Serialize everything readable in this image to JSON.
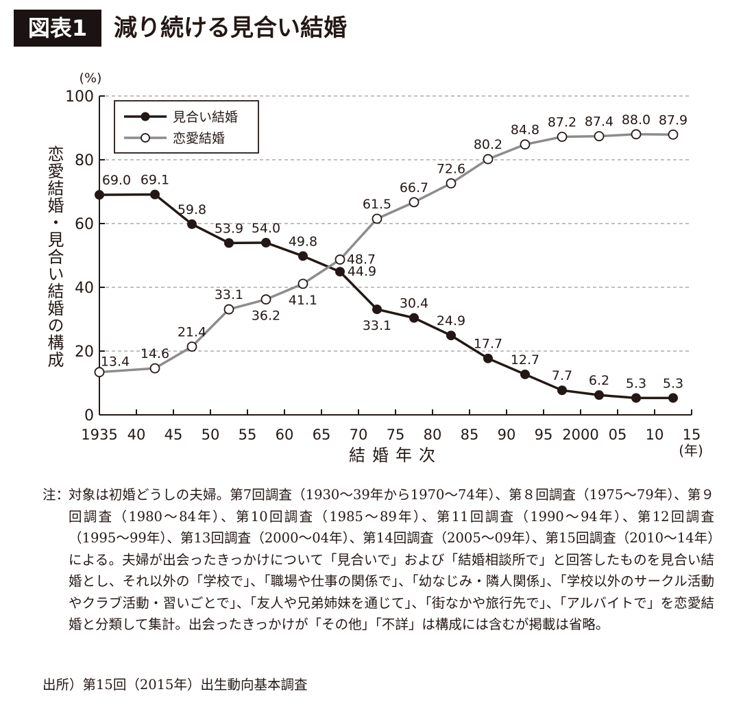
{
  "figure_label": "図表1",
  "title": "減り続ける見合い結婚",
  "chart_data": {
    "type": "line",
    "x": [
      1935,
      1942.5,
      1947.5,
      1952.5,
      1957.5,
      1962.5,
      1967.5,
      1972.5,
      1977.5,
      1982.5,
      1987.5,
      1992.5,
      1997.5,
      2002.5,
      2007.5,
      2012.5
    ],
    "xlim": [
      1935,
      2015
    ],
    "ylim": [
      0,
      100
    ],
    "x_ticks": [
      1935,
      1940,
      1945,
      1950,
      1955,
      1960,
      1965,
      1970,
      1975,
      1980,
      1985,
      1990,
      1995,
      2000,
      2005,
      2010,
      2015
    ],
    "x_tick_labels": [
      "1935",
      "40",
      "45",
      "50",
      "55",
      "60",
      "65",
      "70",
      "75",
      "80",
      "85",
      "90",
      "95",
      "2000",
      "05",
      "10",
      "15"
    ],
    "y_ticks": [
      0,
      20,
      40,
      60,
      80,
      100
    ],
    "y_tick_labels": [
      "0",
      "20",
      "40",
      "60",
      "80",
      "100"
    ],
    "y_unit": "(%)",
    "x_unit": "(年)",
    "xlabel": "結婚年次",
    "ylabel": "恋愛結婚・見合い結婚の構成",
    "grid": "horizontal dashed",
    "legend_position": "top-left",
    "series": [
      {
        "name": "見合い結婚",
        "color": "#231815",
        "marker": "filled",
        "values": [
          69.0,
          69.1,
          59.8,
          53.9,
          54.0,
          49.8,
          44.9,
          33.1,
          30.4,
          24.9,
          17.7,
          12.7,
          7.7,
          6.2,
          5.3,
          5.3
        ],
        "labels": [
          "69.0",
          "69.1",
          "59.8",
          "53.9",
          "54.0",
          "49.8",
          "44.9",
          "33.1",
          "30.4",
          "24.9",
          "17.7",
          "12.7",
          "7.7",
          "6.2",
          "5.3",
          "5.3"
        ]
      },
      {
        "name": "恋愛結婚",
        "color": "#8c8c8c",
        "marker": "hollow",
        "values": [
          13.4,
          14.6,
          21.4,
          33.1,
          36.2,
          41.1,
          48.7,
          61.5,
          66.7,
          72.6,
          80.2,
          84.8,
          87.2,
          87.4,
          88.0,
          87.9
        ],
        "labels": [
          "13.4",
          "14.6",
          "21.4",
          "33.1",
          "36.2",
          "41.1",
          "48.7",
          "61.5",
          "66.7",
          "72.6",
          "80.2",
          "84.8",
          "87.2",
          "87.4",
          "88.0",
          "87.9"
        ]
      }
    ]
  },
  "note_label": "注：",
  "note_text": "対象は初婚どうしの夫婦。第7回調査（1930〜39年から1970〜74年）、第８回調査（1975〜79年）、第９回調査（1980〜84年）、第10回調査（1985〜89年）、第11回調査（1990〜94年）、第12回調査（1995〜99年）、第13回調査（2000〜04年）、第14回調査（2005〜09年）、第15回調査（2010〜14年）による。夫婦が出会ったきっかけについて「見合いで」および「結婚相談所で」と回答したものを見合い結婚とし、それ以外の「学校で」、「職場や仕事の関係で」、「幼なじみ・隣人関係」、「学校以外のサークル活動やクラブ活動・習いごとで」、「友人や兄弟姉妹を通じて」、「街なかや旅行先で」、「アルバイトで」を恋愛結婚と分類して集計。出会ったきっかけが「その他」「不詳」は構成には含むが掲載は省略。",
  "source_text": "出所）第15回（2015年）出生動向基本調査"
}
